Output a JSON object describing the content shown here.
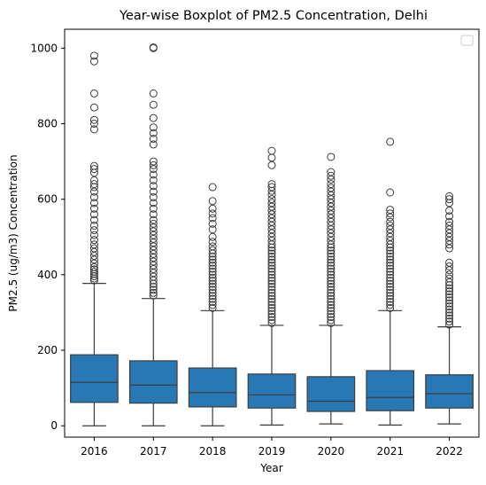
{
  "chart_data": {
    "type": "boxplot",
    "title": "Year-wise Boxplot of PM2.5 Concentration, Delhi",
    "xlabel": "Year",
    "ylabel": "PM2.5 (ug/m3) Concentration",
    "categories": [
      "2016",
      "2017",
      "2018",
      "2019",
      "2020",
      "2021",
      "2022"
    ],
    "ylim": [
      -30,
      1050
    ],
    "yticks": [
      0,
      200,
      400,
      600,
      800,
      1000
    ],
    "grid": false,
    "legend": "top-right (empty)",
    "box_color": "#2c7bb6",
    "box_fill": "#2878b5",
    "line_color": "#3d3d3d",
    "boxes": [
      {
        "year": "2016",
        "whisker_low": 0,
        "q1": 62,
        "median": 115,
        "q3": 188,
        "whisker_high": 377,
        "outliers": [
          385,
          390,
          396,
          402,
          408,
          414,
          420,
          430,
          440,
          450,
          460,
          470,
          480,
          492,
          505,
          518,
          530,
          545,
          560,
          575,
          590,
          605,
          620,
          632,
          640,
          650,
          670,
          680,
          688,
          785,
          800,
          810,
          843,
          880,
          965,
          980
        ]
      },
      {
        "year": "2017",
        "whisker_low": 0,
        "q1": 60,
        "median": 108,
        "q3": 172,
        "whisker_high": 337,
        "outliers": [
          345,
          352,
          360,
          368,
          376,
          385,
          395,
          405,
          415,
          425,
          435,
          445,
          455,
          465,
          475,
          485,
          495,
          505,
          515,
          525,
          535,
          545,
          560,
          575,
          590,
          605,
          620,
          635,
          650,
          665,
          680,
          690,
          700,
          745,
          760,
          775,
          790,
          815,
          850,
          880,
          1000,
          1002
        ]
      },
      {
        "year": "2018",
        "whisker_low": 0,
        "q1": 50,
        "median": 88,
        "q3": 153,
        "whisker_high": 305,
        "outliers": [
          312,
          320,
          328,
          336,
          344,
          352,
          360,
          368,
          376,
          384,
          392,
          400,
          408,
          416,
          424,
          432,
          440,
          448,
          456,
          465,
          475,
          487,
          500,
          520,
          535,
          550,
          562,
          575,
          595,
          632
        ]
      },
      {
        "year": "2019",
        "whisker_low": 2,
        "q1": 47,
        "median": 82,
        "q3": 137,
        "whisker_high": 266,
        "outliers": [
          272,
          280,
          288,
          296,
          304,
          312,
          320,
          328,
          336,
          344,
          352,
          360,
          368,
          376,
          384,
          392,
          400,
          408,
          416,
          424,
          432,
          440,
          448,
          456,
          464,
          472,
          480,
          490,
          500,
          510,
          520,
          530,
          540,
          550,
          560,
          570,
          580,
          590,
          600,
          612,
          622,
          632,
          640,
          690,
          710,
          728
        ]
      },
      {
        "year": "2020",
        "whisker_low": 5,
        "q1": 38,
        "median": 65,
        "q3": 130,
        "whisker_high": 266,
        "outliers": [
          272,
          280,
          288,
          296,
          304,
          312,
          320,
          328,
          336,
          344,
          352,
          360,
          368,
          376,
          384,
          392,
          400,
          408,
          416,
          424,
          432,
          440,
          448,
          456,
          464,
          472,
          480,
          490,
          500,
          510,
          520,
          530,
          540,
          550,
          560,
          570,
          580,
          590,
          600,
          610,
          620,
          630,
          640,
          652,
          662,
          672,
          712
        ]
      },
      {
        "year": "2021",
        "whisker_low": 2,
        "q1": 40,
        "median": 75,
        "q3": 146,
        "whisker_high": 305,
        "outliers": [
          312,
          320,
          328,
          336,
          344,
          352,
          360,
          368,
          376,
          384,
          392,
          400,
          408,
          416,
          424,
          432,
          440,
          448,
          456,
          464,
          472,
          480,
          490,
          500,
          510,
          520,
          530,
          540,
          552,
          562,
          572,
          618,
          752
        ]
      },
      {
        "year": "2022",
        "whisker_low": 5,
        "q1": 47,
        "median": 85,
        "q3": 135,
        "whisker_high": 262,
        "outliers": [
          268,
          276,
          284,
          292,
          300,
          308,
          316,
          324,
          332,
          340,
          348,
          356,
          364,
          372,
          380,
          390,
          400,
          412,
          422,
          432,
          470,
          480,
          490,
          500,
          510,
          520,
          530,
          540,
          555,
          570,
          590,
          600,
          608
        ]
      }
    ]
  }
}
